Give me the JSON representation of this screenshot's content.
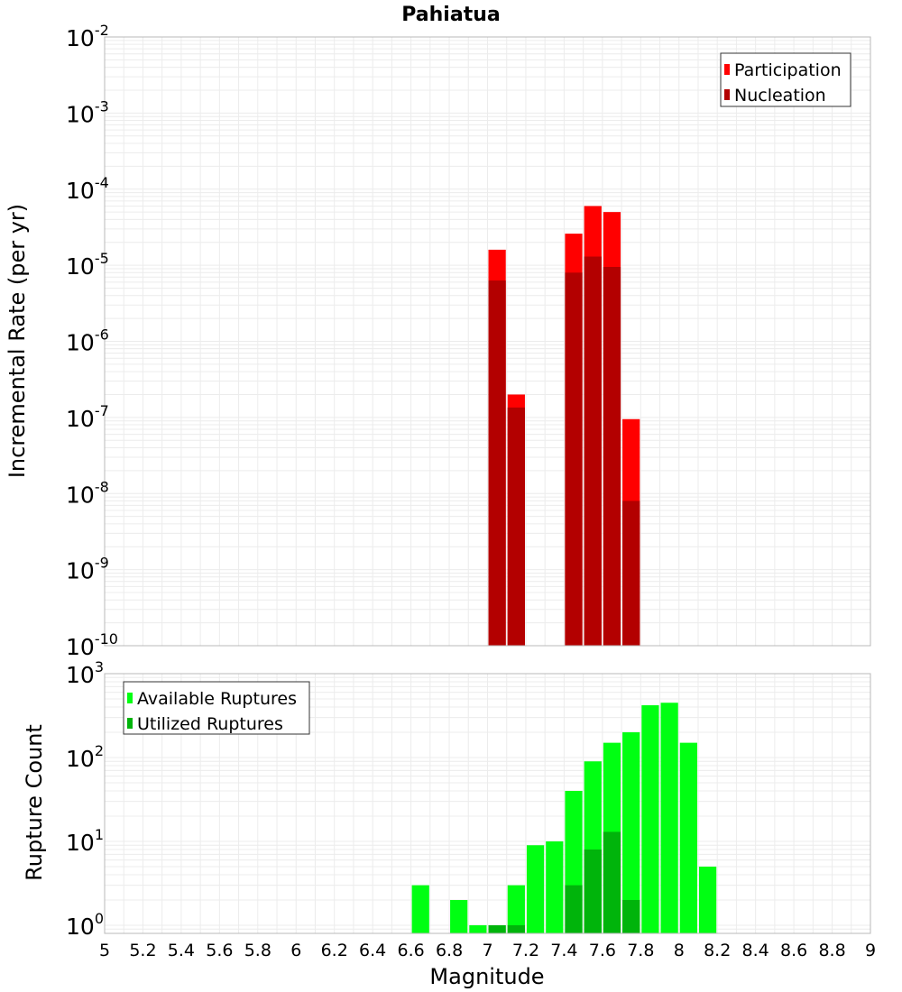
{
  "colors": {
    "participation": "#ff0000",
    "nucleation": "#b30000",
    "available": "#00ff12",
    "utilized": "#00b40b",
    "grid": "#ececec",
    "frame": "#b8b8b8"
  },
  "chart_data": [
    {
      "type": "bar",
      "title": "Pahiatua",
      "ylabel": "Incremental Rate (per yr)",
      "xlabel": "",
      "yscale": "log",
      "xlim": [
        5,
        9
      ],
      "ylim": [
        1e-10,
        0.01
      ],
      "y_ticks": [
        {
          "base": "10",
          "exp": "-10",
          "value": 1e-10
        },
        {
          "base": "10",
          "exp": "-9",
          "value": 1e-09
        },
        {
          "base": "10",
          "exp": "-8",
          "value": 1e-08
        },
        {
          "base": "10",
          "exp": "-7",
          "value": 1e-07
        },
        {
          "base": "10",
          "exp": "-6",
          "value": 1e-06
        },
        {
          "base": "10",
          "exp": "-5",
          "value": 1e-05
        },
        {
          "base": "10",
          "exp": "-4",
          "value": 0.0001
        },
        {
          "base": "10",
          "exp": "-3",
          "value": 0.001
        },
        {
          "base": "10",
          "exp": "-2",
          "value": 0.01
        }
      ],
      "legend": {
        "position": "top-right",
        "entries": [
          "Participation",
          "Nucleation"
        ]
      },
      "series": [
        {
          "name": "Participation",
          "color_key": "participation",
          "x": [
            7.05,
            7.15,
            7.45,
            7.55,
            7.65,
            7.75
          ],
          "values": [
            1.6e-05,
            2e-07,
            2.6e-05,
            6e-05,
            5e-05,
            9.5e-08
          ]
        },
        {
          "name": "Nucleation",
          "color_key": "nucleation",
          "x": [
            7.05,
            7.15,
            7.45,
            7.55,
            7.65,
            7.75
          ],
          "values": [
            6.3e-06,
            1.35e-07,
            8e-06,
            1.3e-05,
            9.5e-06,
            8e-09
          ]
        }
      ]
    },
    {
      "type": "bar",
      "title": "",
      "ylabel": "Rupture Count",
      "xlabel": "Magnitude",
      "yscale": "log",
      "xlim": [
        5,
        9
      ],
      "ylim": [
        0.8,
        1000
      ],
      "y_ticks": [
        {
          "base": "10",
          "exp": "0",
          "value": 1
        },
        {
          "base": "10",
          "exp": "1",
          "value": 10
        },
        {
          "base": "10",
          "exp": "2",
          "value": 100
        },
        {
          "base": "10",
          "exp": "3",
          "value": 1000
        }
      ],
      "x_ticks": [
        "5",
        "5.2",
        "5.4",
        "5.6",
        "5.8",
        "6",
        "6.2",
        "6.4",
        "6.6",
        "6.8",
        "7",
        "7.2",
        "7.4",
        "7.6",
        "7.8",
        "8",
        "8.2",
        "8.4",
        "8.6",
        "8.8",
        "9"
      ],
      "legend": {
        "position": "top-left",
        "entries": [
          "Available Ruptures",
          "Utilized Ruptures"
        ]
      },
      "series": [
        {
          "name": "Available Ruptures",
          "color_key": "available",
          "x": [
            6.65,
            6.85,
            6.95,
            7.05,
            7.15,
            7.25,
            7.35,
            7.45,
            7.55,
            7.65,
            7.75,
            7.85,
            7.95,
            8.05,
            8.15
          ],
          "values": [
            3,
            2,
            1,
            1,
            3,
            9,
            10,
            40,
            90,
            150,
            200,
            420,
            450,
            150,
            5
          ]
        },
        {
          "name": "Utilized Ruptures",
          "color_key": "utilized",
          "x": [
            7.05,
            7.15,
            7.45,
            7.55,
            7.65,
            7.75
          ],
          "values": [
            1,
            1,
            3,
            8,
            13,
            2
          ]
        }
      ]
    }
  ]
}
